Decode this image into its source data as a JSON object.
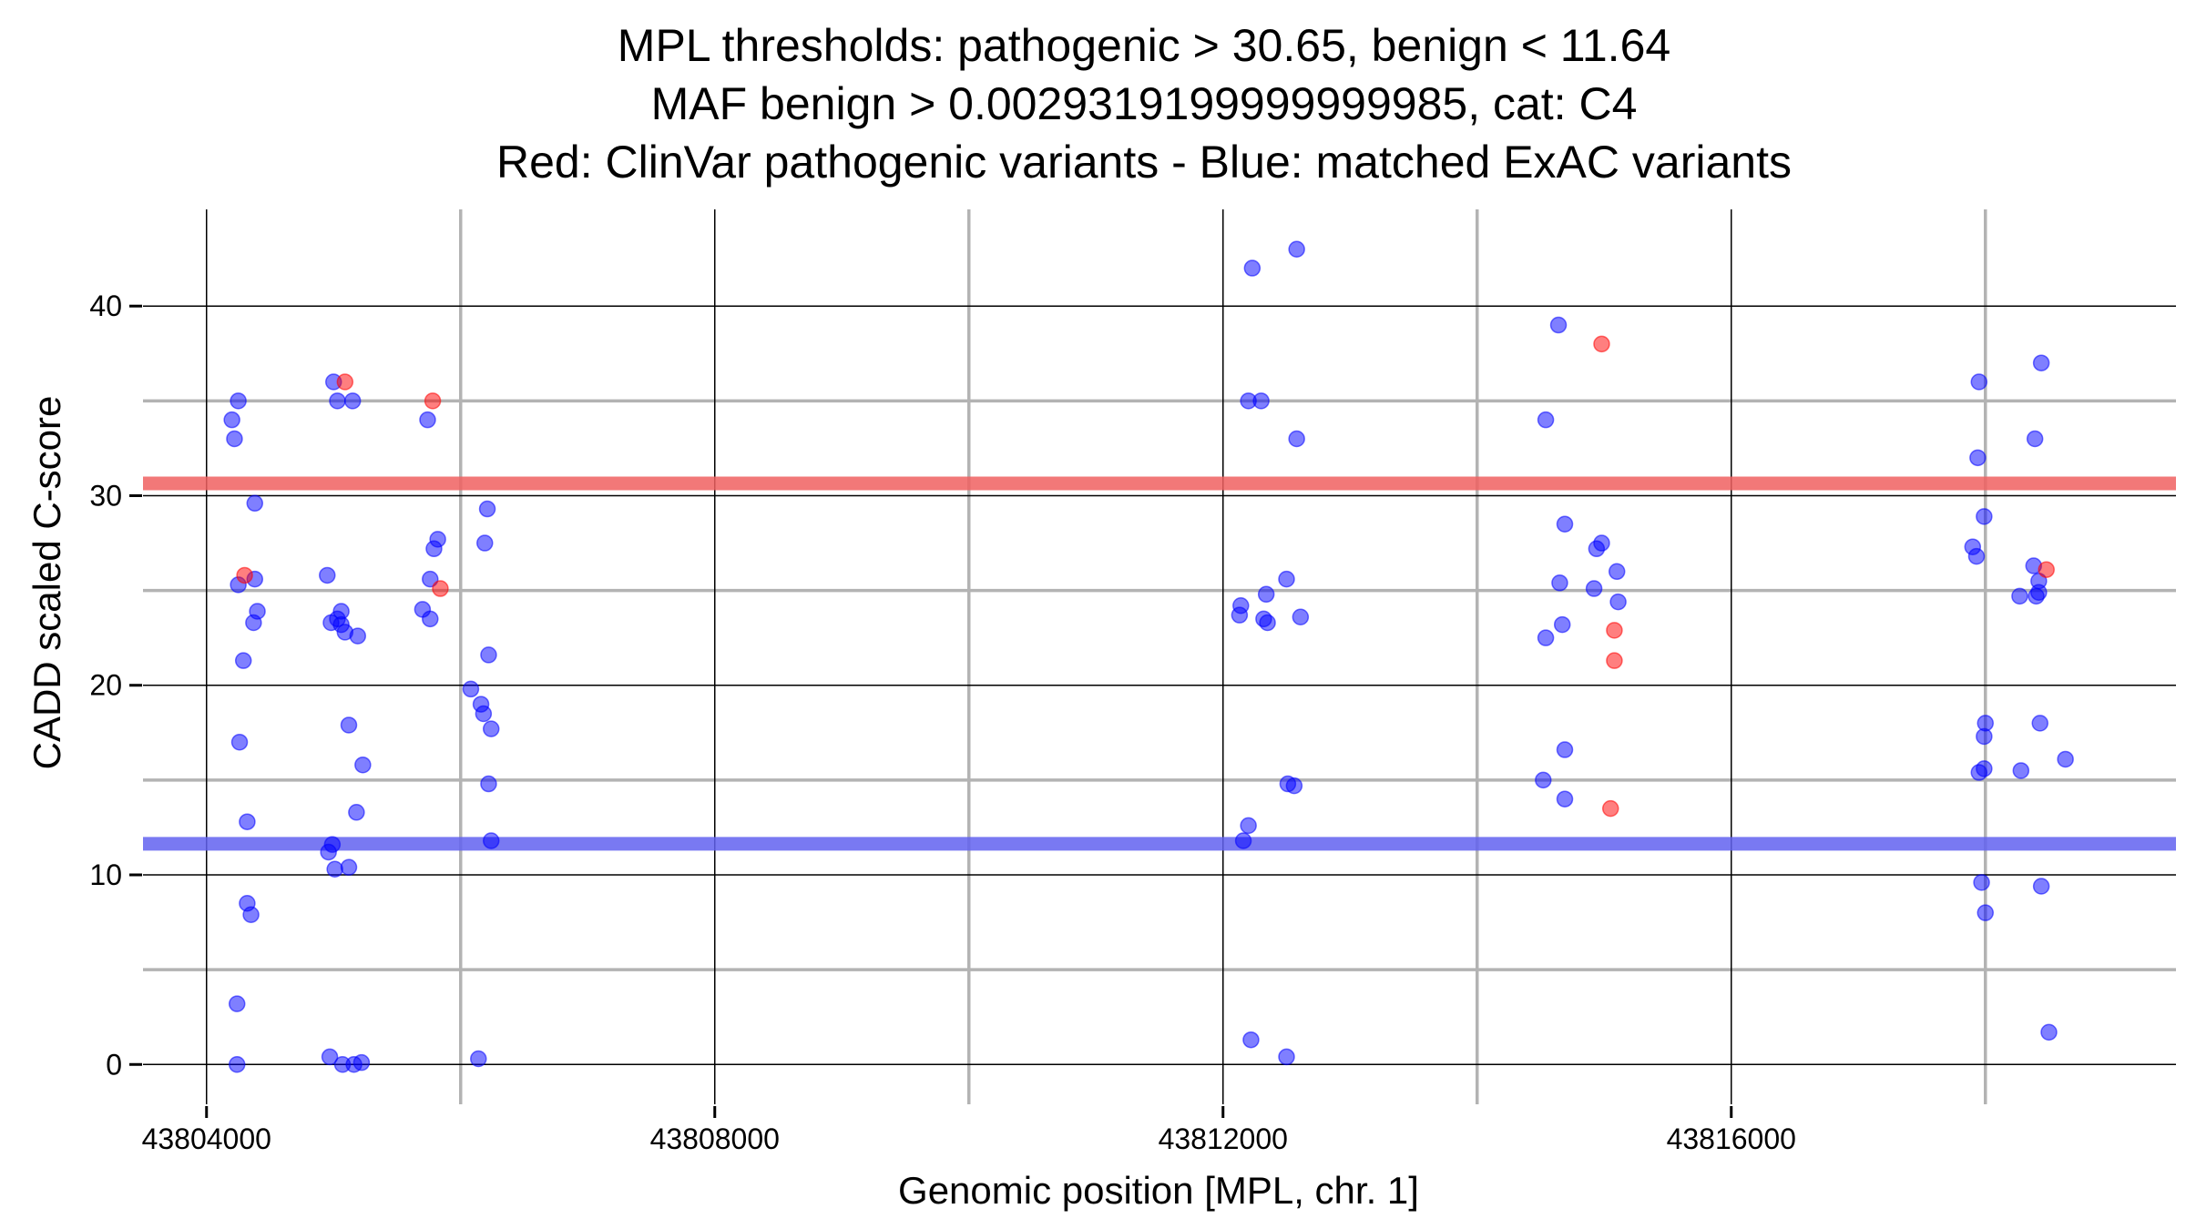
{
  "chart_data": {
    "type": "scatter",
    "title_lines": [
      "MPL thresholds: pathogenic > 30.65, benign < 11.64",
      "MAF benign > 0.0029319199999999985, cat: C4",
      "Red: ClinVar pathogenic variants - Blue: matched ExAC variants"
    ],
    "xlabel": "Genomic position [MPL, chr. 1]",
    "ylabel": "CADD scaled C-score",
    "xlim": [
      43803500,
      43819500
    ],
    "ylim": [
      -2.1,
      45.1
    ],
    "x_ticks": [
      43804000,
      43808000,
      43812000,
      43816000
    ],
    "x_minor": [
      43806000,
      43810000,
      43814000,
      43818000
    ],
    "y_ticks": [
      0,
      10,
      20,
      30,
      40
    ],
    "y_minor": [
      5,
      15,
      25,
      35
    ],
    "grid": true,
    "thresholds": [
      {
        "name": "pathogenic",
        "value": 30.65,
        "color": "#f06060"
      },
      {
        "name": "benign",
        "value": 11.64,
        "color": "#6161f0"
      }
    ],
    "colors": {
      "pathogenic": "#ff0000",
      "exac": "#0000ff"
    },
    "series": [
      {
        "name": "ClinVar pathogenic variants",
        "color": "#ff0000",
        "points": [
          [
            43805090,
            36.0
          ],
          [
            43805780,
            35.0
          ],
          [
            43804300,
            25.8
          ],
          [
            43805840,
            25.1
          ],
          [
            43814980,
            38.0
          ],
          [
            43815080,
            22.9
          ],
          [
            43815080,
            21.3
          ],
          [
            43815050,
            13.5
          ],
          [
            43818480,
            26.1
          ]
        ]
      },
      {
        "name": "matched ExAC variants",
        "color": "#0000ff",
        "points": [
          [
            43804250,
            35.0
          ],
          [
            43804200,
            34.0
          ],
          [
            43804220,
            33.0
          ],
          [
            43804380,
            29.6
          ],
          [
            43804250,
            25.3
          ],
          [
            43804380,
            25.6
          ],
          [
            43804400,
            23.9
          ],
          [
            43804370,
            23.3
          ],
          [
            43804290,
            21.3
          ],
          [
            43804260,
            17.0
          ],
          [
            43804320,
            12.8
          ],
          [
            43804320,
            8.5
          ],
          [
            43804350,
            7.9
          ],
          [
            43804240,
            3.2
          ],
          [
            43804240,
            0.0
          ],
          [
            43805000,
            36.0
          ],
          [
            43805030,
            35.0
          ],
          [
            43805150,
            35.0
          ],
          [
            43804950,
            25.8
          ],
          [
            43805060,
            23.9
          ],
          [
            43804980,
            23.3
          ],
          [
            43805030,
            23.5
          ],
          [
            43805060,
            23.2
          ],
          [
            43805090,
            22.8
          ],
          [
            43805190,
            22.6
          ],
          [
            43805120,
            17.9
          ],
          [
            43805230,
            15.8
          ],
          [
            43805180,
            13.3
          ],
          [
            43804990,
            11.6
          ],
          [
            43804960,
            11.2
          ],
          [
            43805010,
            10.3
          ],
          [
            43805120,
            10.4
          ],
          [
            43804970,
            0.4
          ],
          [
            43805070,
            0.0
          ],
          [
            43805160,
            0.0
          ],
          [
            43805220,
            0.1
          ],
          [
            43805740,
            34.0
          ],
          [
            43805820,
            27.7
          ],
          [
            43805790,
            27.2
          ],
          [
            43805760,
            25.6
          ],
          [
            43805700,
            24.0
          ],
          [
            43805760,
            23.5
          ],
          [
            43806210,
            29.3
          ],
          [
            43806190,
            27.5
          ],
          [
            43806220,
            21.6
          ],
          [
            43806080,
            19.8
          ],
          [
            43806160,
            19.0
          ],
          [
            43806180,
            18.5
          ],
          [
            43806240,
            17.7
          ],
          [
            43806220,
            14.8
          ],
          [
            43806240,
            11.8
          ],
          [
            43806140,
            0.3
          ],
          [
            43812230,
            42.0
          ],
          [
            43812580,
            43.0
          ],
          [
            43812200,
            35.0
          ],
          [
            43812300,
            35.0
          ],
          [
            43812580,
            33.0
          ],
          [
            43812140,
            24.2
          ],
          [
            43812130,
            23.7
          ],
          [
            43812340,
            24.8
          ],
          [
            43812500,
            25.6
          ],
          [
            43812320,
            23.5
          ],
          [
            43812350,
            23.3
          ],
          [
            43812610,
            23.6
          ],
          [
            43812510,
            14.8
          ],
          [
            43812560,
            14.7
          ],
          [
            43812200,
            12.6
          ],
          [
            43812160,
            11.8
          ],
          [
            43812220,
            1.3
          ],
          [
            43812500,
            0.4
          ],
          [
            43814640,
            39.0
          ],
          [
            43814540,
            34.0
          ],
          [
            43814690,
            28.5
          ],
          [
            43814980,
            27.5
          ],
          [
            43814940,
            27.2
          ],
          [
            43815100,
            26.0
          ],
          [
            43814650,
            25.4
          ],
          [
            43814920,
            25.1
          ],
          [
            43815110,
            24.4
          ],
          [
            43814670,
            23.2
          ],
          [
            43814540,
            22.5
          ],
          [
            43814690,
            16.6
          ],
          [
            43814520,
            15.0
          ],
          [
            43814690,
            14.0
          ],
          [
            43817950,
            36.0
          ],
          [
            43818440,
            37.0
          ],
          [
            43817940,
            32.0
          ],
          [
            43818390,
            33.0
          ],
          [
            43817990,
            28.9
          ],
          [
            43817900,
            27.3
          ],
          [
            43817930,
            26.8
          ],
          [
            43818380,
            26.3
          ],
          [
            43818420,
            25.5
          ],
          [
            43818420,
            24.9
          ],
          [
            43818270,
            24.7
          ],
          [
            43818400,
            24.7
          ],
          [
            43818000,
            18.0
          ],
          [
            43818430,
            18.0
          ],
          [
            43817990,
            17.3
          ],
          [
            43818630,
            16.1
          ],
          [
            43817990,
            15.6
          ],
          [
            43817950,
            15.4
          ],
          [
            43818280,
            15.5
          ],
          [
            43817970,
            9.6
          ],
          [
            43818000,
            8.0
          ],
          [
            43818440,
            9.4
          ],
          [
            43818500,
            1.7
          ]
        ]
      }
    ]
  }
}
